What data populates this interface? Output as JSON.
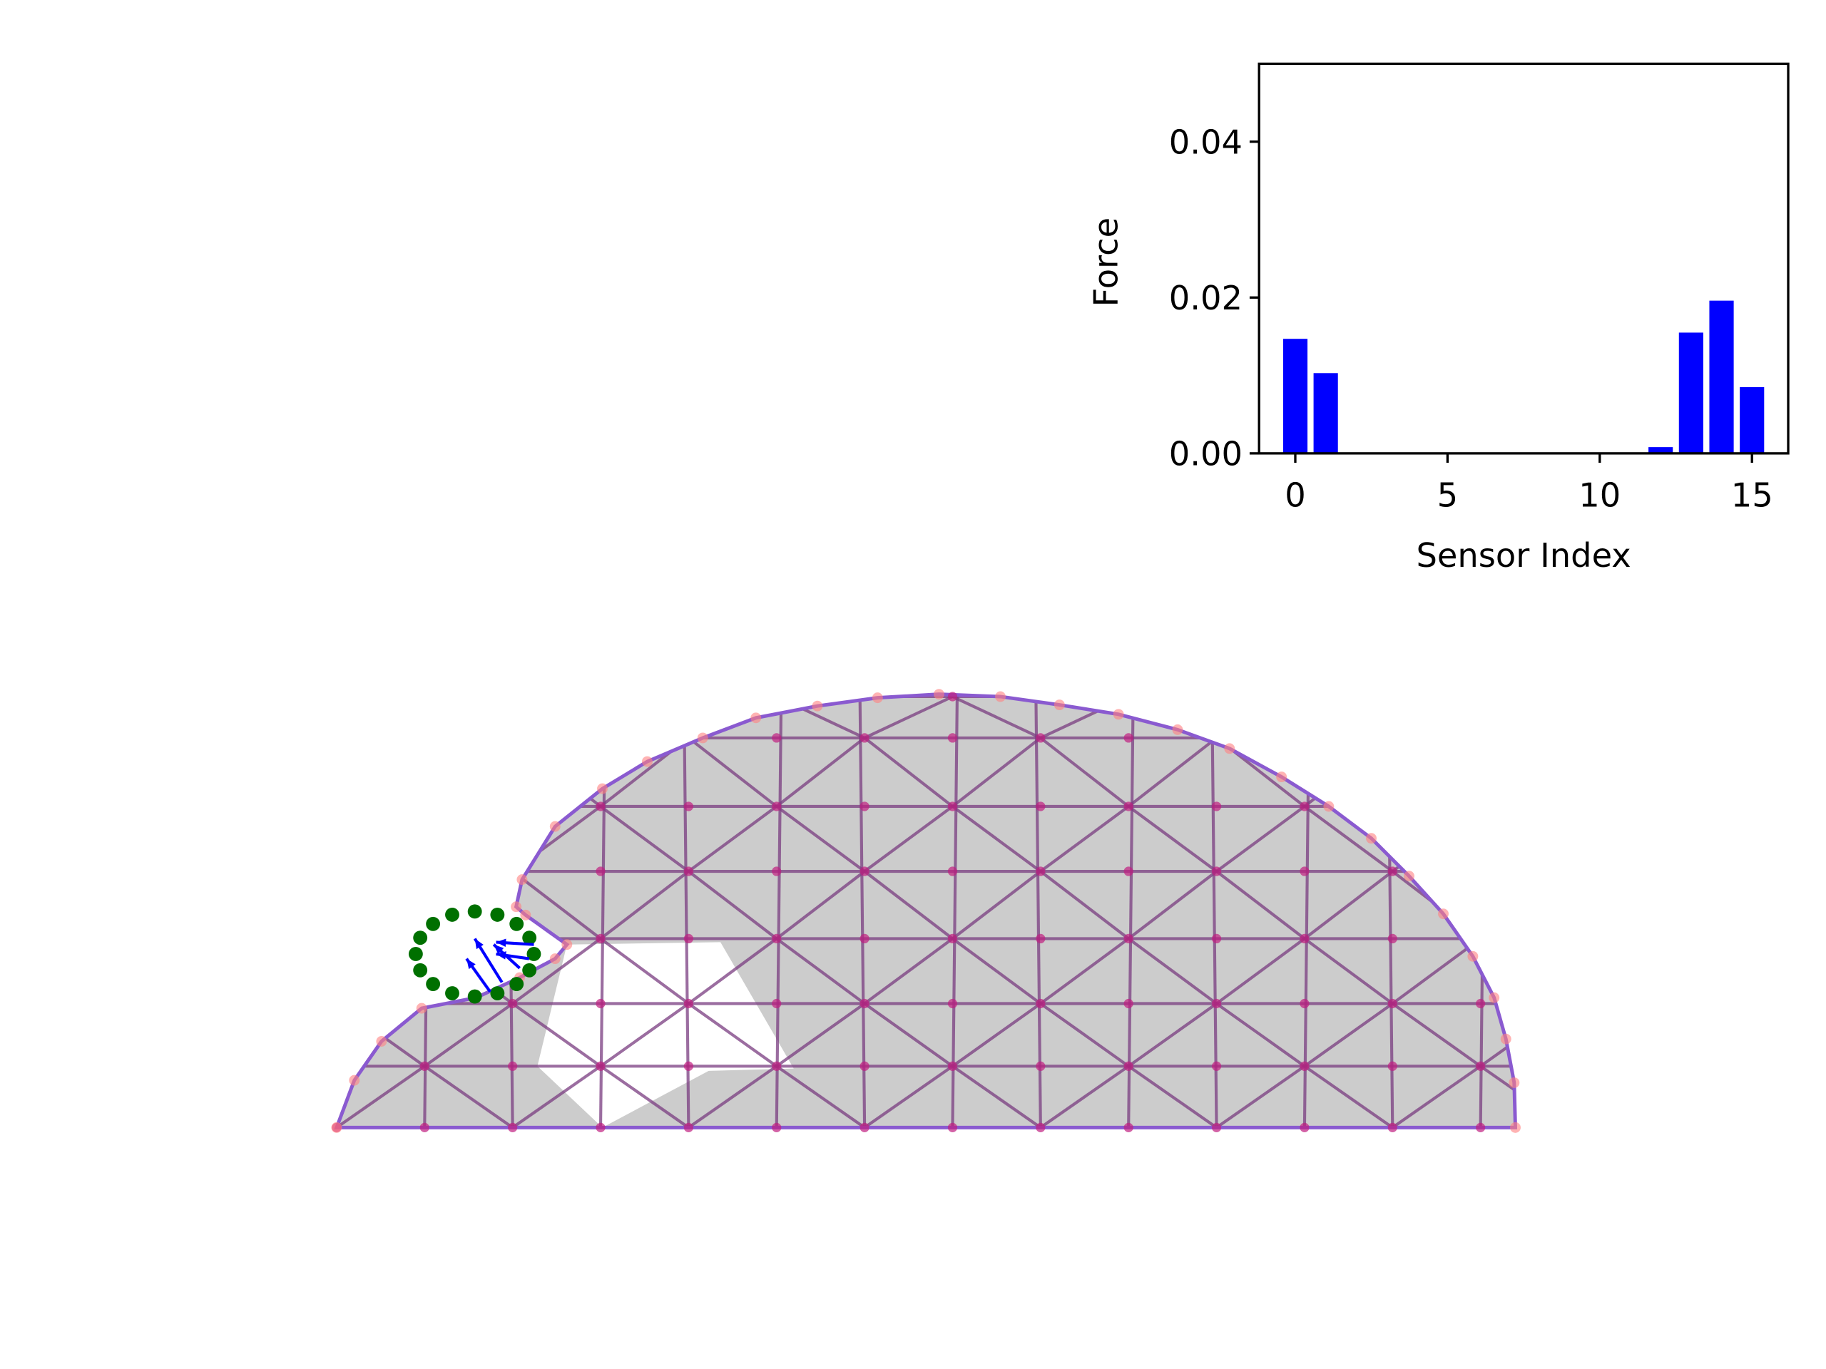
{
  "chart_data": {
    "type": "bar",
    "x": [
      0,
      1,
      2,
      3,
      4,
      5,
      6,
      7,
      8,
      9,
      10,
      11,
      12,
      13,
      14,
      15
    ],
    "values": [
      0.0147,
      0.0103,
      0,
      0,
      0,
      0,
      0,
      0,
      0,
      0,
      0,
      0,
      0.0008,
      0.0155,
      0.0196,
      0.0085
    ],
    "color": "#0000ff",
    "xlabel": "Sensor Index",
    "ylabel": "Force",
    "xlim": [
      -1.19,
      16.19
    ],
    "ylim": [
      0,
      0.05
    ],
    "xticks": [
      0,
      5,
      10,
      15
    ],
    "yticks": [
      {
        "value": 0,
        "label": "0.00"
      },
      {
        "value": 0.02,
        "label": "0.02"
      },
      {
        "value": 0.04,
        "label": "0.04"
      }
    ]
  }
}
